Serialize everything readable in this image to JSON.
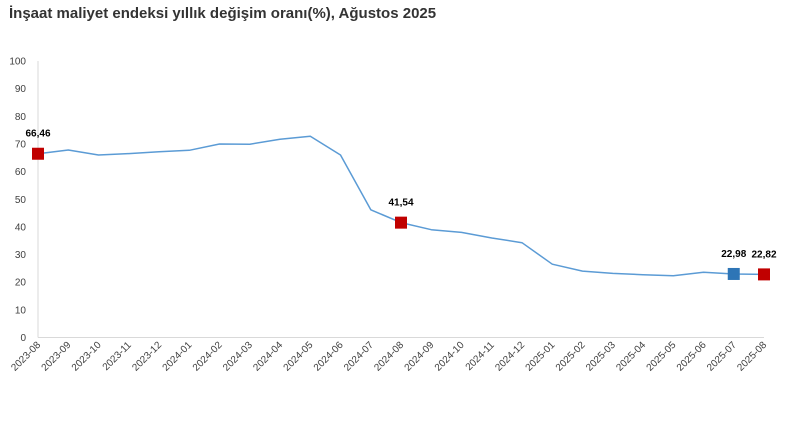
{
  "chart_data": {
    "type": "line",
    "title": "İnşaat maliyet endeksi yıllık değişim oranı(%), Ağustos 2025",
    "xlabel": "",
    "ylabel": "",
    "ylim": [
      0,
      100
    ],
    "yticks": [
      0,
      10,
      20,
      30,
      40,
      50,
      60,
      70,
      80,
      90,
      100
    ],
    "grid": false,
    "categories": [
      "2023-08",
      "2023-09",
      "2023-10",
      "2023-11",
      "2023-12",
      "2024-01",
      "2024-02",
      "2024-03",
      "2024-04",
      "2024-05",
      "2024-06",
      "2024-07",
      "2024-08",
      "2024-09",
      "2024-10",
      "2024-11",
      "2024-12",
      "2025-01",
      "2025-02",
      "2025-03",
      "2025-04",
      "2025-05",
      "2025-06",
      "2025-07",
      "2025-08"
    ],
    "series": [
      {
        "values": [
          66.46,
          67.8,
          66.0,
          66.5,
          67.2,
          67.7,
          70.0,
          69.9,
          71.7,
          72.8,
          66.0,
          46.2,
          41.54,
          39.0,
          38.0,
          36.0,
          34.3,
          26.5,
          24.0,
          23.2,
          22.7,
          22.3,
          23.6,
          22.98,
          22.82
        ],
        "color": "#5B9BD5"
      }
    ],
    "markers": [
      {
        "index": 0,
        "label": "66,46",
        "color": "#C00000"
      },
      {
        "index": 12,
        "label": "41,54",
        "color": "#C00000"
      },
      {
        "index": 23,
        "label": "22,98",
        "color": "#2E75B6"
      },
      {
        "index": 24,
        "label": "22,82",
        "color": "#C00000"
      }
    ],
    "axis_color": "#D9D9D9"
  }
}
